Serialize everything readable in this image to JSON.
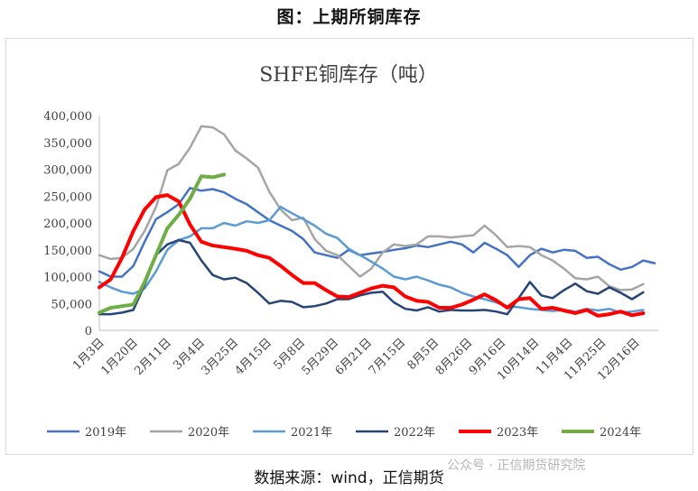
{
  "figure_title": "图：上期所铜库存",
  "source_text": "数据来源：wind，正信期货",
  "watermark_text": "公众号 · 正信期货研究院",
  "chart_data": {
    "type": "line",
    "title": "SHFE铜库存（吨）",
    "xlabel": "",
    "ylabel": "",
    "ylim": [
      0,
      400000
    ],
    "y_ticks": [
      0,
      50000,
      100000,
      150000,
      200000,
      250000,
      300000,
      350000,
      400000
    ],
    "y_tick_labels": [
      "0",
      "50,000",
      "100,000",
      "150,000",
      "200,000",
      "250,000",
      "300,000",
      "350,000",
      "400,000"
    ],
    "x_tick_labels": [
      "1月3日",
      "1月20日",
      "2月11日",
      "3月4日",
      "3月25日",
      "4月15日",
      "5月8日",
      "5月29日",
      "6月21日",
      "7月15日",
      "8月5日",
      "8月26日",
      "9月16日",
      "10月14日",
      "11月4日",
      "11月25日",
      "12月16日"
    ],
    "grid": false,
    "legend_position": "bottom",
    "series": [
      {
        "name": "2019年",
        "color": "#4472c4",
        "width": 2.5,
        "values": [
          110000,
          100000,
          100000,
          120000,
          165000,
          207000,
          220000,
          235000,
          265000,
          260000,
          263000,
          257000,
          245000,
          235000,
          220000,
          205000,
          195000,
          185000,
          170000,
          145000,
          140000,
          135000,
          150000,
          140000,
          143000,
          146000,
          150000,
          153000,
          158000,
          155000,
          160000,
          165000,
          160000,
          145000,
          163000,
          152000,
          140000,
          118000,
          140000,
          152000,
          145000,
          150000,
          148000,
          135000,
          137000,
          123000,
          113000,
          118000,
          130000,
          125000
        ]
      },
      {
        "name": "2020年",
        "color": "#a5a5a5",
        "width": 2.5,
        "values": [
          140000,
          133000,
          135000,
          152000,
          185000,
          230000,
          298000,
          310000,
          340000,
          380000,
          378000,
          365000,
          335000,
          320000,
          303000,
          258000,
          225000,
          205000,
          210000,
          170000,
          148000,
          140000,
          120000,
          100000,
          115000,
          145000,
          160000,
          157000,
          160000,
          175000,
          175000,
          173000,
          175000,
          177000,
          195000,
          177000,
          155000,
          157000,
          155000,
          140000,
          130000,
          115000,
          97000,
          95000,
          100000,
          82000,
          75000,
          76000,
          86000
        ]
      },
      {
        "name": "2021年",
        "color": "#5b9bd5",
        "width": 2.5,
        "values": [
          90000,
          80000,
          72000,
          68000,
          78000,
          110000,
          150000,
          168000,
          175000,
          190000,
          190000,
          200000,
          195000,
          203000,
          200000,
          205000,
          230000,
          218000,
          207000,
          195000,
          180000,
          172000,
          152000,
          140000,
          128000,
          115000,
          100000,
          95000,
          100000,
          93000,
          85000,
          80000,
          70000,
          63000,
          58000,
          52000,
          45000,
          43000,
          40000,
          38000,
          36000,
          38000,
          35000,
          40000,
          37000,
          40000,
          33000,
          35000,
          38000
        ]
      },
      {
        "name": "2022年",
        "color": "#264478",
        "width": 2.5,
        "values": [
          30000,
          30000,
          33000,
          38000,
          85000,
          140000,
          160000,
          168000,
          163000,
          130000,
          103000,
          95000,
          98000,
          88000,
          70000,
          50000,
          55000,
          53000,
          43000,
          45000,
          50000,
          58000,
          58000,
          65000,
          70000,
          72000,
          52000,
          40000,
          37000,
          43000,
          35000,
          38000,
          37000,
          37000,
          38000,
          35000,
          30000,
          60000,
          90000,
          65000,
          60000,
          75000,
          87000,
          73000,
          68000,
          80000,
          70000,
          58000,
          71000
        ]
      },
      {
        "name": "2023年",
        "color": "#ff0000",
        "width": 4,
        "values": [
          80000,
          95000,
          135000,
          185000,
          225000,
          248000,
          252000,
          240000,
          197000,
          165000,
          158000,
          155000,
          152000,
          148000,
          140000,
          135000,
          120000,
          103000,
          88000,
          88000,
          75000,
          63000,
          62000,
          70000,
          78000,
          83000,
          80000,
          63000,
          55000,
          53000,
          42000,
          42000,
          48000,
          57000,
          67000,
          56000,
          42000,
          58000,
          60000,
          40000,
          42000,
          37000,
          32000,
          38000,
          27000,
          30000,
          35000,
          28000,
          32000
        ]
      },
      {
        "name": "2024年",
        "color": "#70ad47",
        "width": 4,
        "values": [
          33000,
          42000,
          45000,
          48000,
          90000,
          140000,
          190000,
          215000,
          245000,
          287000,
          285000,
          290000
        ]
      }
    ]
  }
}
